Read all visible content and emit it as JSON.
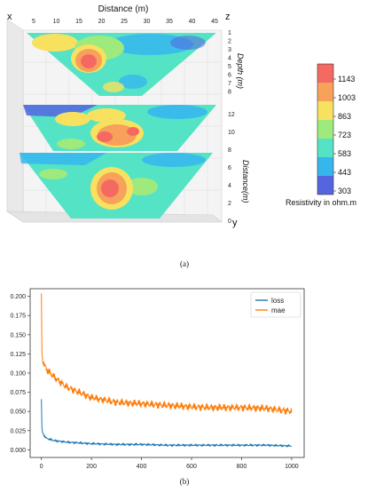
{
  "panel_a": {
    "caption": "(a)",
    "x_axis_title": "Distance (m)",
    "x_corner_label": "x",
    "z_corner_label": "z",
    "y_corner_label": "y",
    "x_ticks": [
      "5",
      "10",
      "15",
      "20",
      "25",
      "30",
      "35",
      "40",
      "45"
    ],
    "depth_label": "Depth (m)",
    "depth_ticks": [
      "1",
      "2",
      "3",
      "4",
      "5",
      "6",
      "7",
      "8"
    ],
    "distance_label": "Distance(m)",
    "distance_ticks": [
      "12",
      "10",
      "8",
      "6",
      "4",
      "2",
      "0"
    ],
    "colorbar_title": "Resistivity in ohm.m",
    "colorbar_ticks": [
      "1143",
      "1003",
      "863",
      "723",
      "583",
      "443",
      "303"
    ],
    "colorbar_colors": [
      "#f46a63",
      "#f7a15a",
      "#f7e15f",
      "#9eea7c",
      "#54e3c5",
      "#37b6ee",
      "#5565df"
    ]
  },
  "chart_data": {
    "type": "line",
    "caption": "(b)",
    "x": [
      0,
      2,
      5,
      10,
      20,
      50,
      100,
      150,
      200,
      300,
      400,
      500,
      600,
      700,
      800,
      900,
      1000
    ],
    "series": [
      {
        "name": "loss",
        "color": "#1f77b4",
        "values": [
          0.066,
          0.028,
          0.022,
          0.019,
          0.015,
          0.012,
          0.01,
          0.009,
          0.008,
          0.007,
          0.007,
          0.006,
          0.006,
          0.006,
          0.006,
          0.006,
          0.005
        ]
      },
      {
        "name": "mae",
        "color": "#ff7f0e",
        "values": [
          0.204,
          0.125,
          0.118,
          0.112,
          0.105,
          0.095,
          0.082,
          0.075,
          0.068,
          0.062,
          0.06,
          0.058,
          0.056,
          0.055,
          0.055,
          0.054,
          0.05
        ]
      }
    ],
    "xticks": [
      "0",
      "200",
      "400",
      "600",
      "800",
      "1000"
    ],
    "yticks": [
      "0.000",
      "0.025",
      "0.050",
      "0.075",
      "0.100",
      "0.125",
      "0.150",
      "0.175",
      "0.200"
    ],
    "xlim": [
      -45,
      1050
    ],
    "ylim": [
      -0.01,
      0.21
    ],
    "legend_position": "top-right",
    "grid": false
  }
}
